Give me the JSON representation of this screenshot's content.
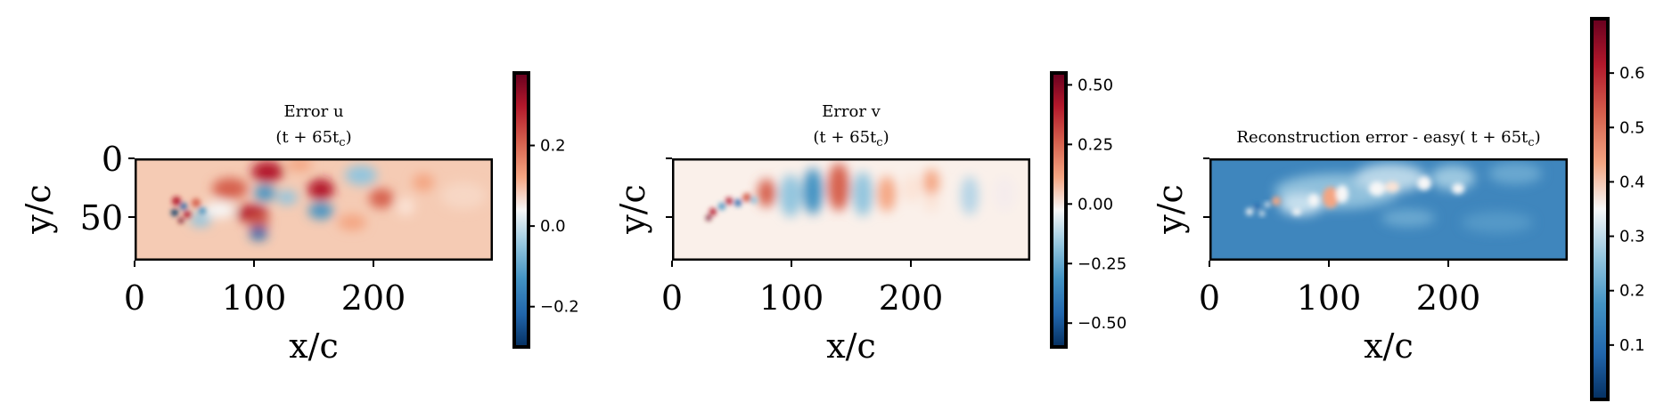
{
  "colors": {
    "negative": "#0a3d7a",
    "zero": "#f7f5f2",
    "positive": "#7a0020",
    "frame": "#000000"
  },
  "colormap": "RdBu_r",
  "chart_data": [
    {
      "type": "heatmap",
      "title_line1": "Error u",
      "title_line2": "(t + 65t",
      "title_sub": "c",
      "title_close": ")",
      "xlabel": "x/c",
      "ylabel": "y/c",
      "xlim": [
        0,
        300
      ],
      "ylim": [
        87,
        0
      ],
      "xticks": [
        {
          "value": 0,
          "label": "0"
        },
        {
          "value": 100,
          "label": "100"
        },
        {
          "value": 200,
          "label": "200"
        }
      ],
      "yticks": [
        {
          "value": 0,
          "label": "0"
        },
        {
          "value": 50,
          "label": "50"
        }
      ],
      "colorbar": {
        "vmin": -0.3,
        "vmax": 0.38,
        "ticks": [
          {
            "value": 0.2,
            "label": "0.2"
          },
          {
            "value": 0.0,
            "label": "0.0"
          },
          {
            "value": -0.2,
            "label": "−0.2"
          }
        ]
      }
    },
    {
      "type": "heatmap",
      "title_line1": "Error v",
      "title_line2": "(t + 65t",
      "title_sub": "c",
      "title_close": ")",
      "xlabel": "x/c",
      "ylabel": "y/c",
      "xlim": [
        0,
        300
      ],
      "ylim": [
        87,
        0
      ],
      "xticks": [
        {
          "value": 0,
          "label": "0"
        },
        {
          "value": 100,
          "label": "100"
        },
        {
          "value": 200,
          "label": "200"
        }
      ],
      "yticks": [
        {
          "value": 0,
          "label": ""
        },
        {
          "value": 50,
          "label": ""
        }
      ],
      "colorbar": {
        "vmin": -0.6,
        "vmax": 0.55,
        "ticks": [
          {
            "value": 0.5,
            "label": "0.50"
          },
          {
            "value": 0.25,
            "label": "0.25"
          },
          {
            "value": 0.0,
            "label": "0.00"
          },
          {
            "value": -0.25,
            "label": "−0.25"
          },
          {
            "value": -0.5,
            "label": "−0.50"
          }
        ]
      }
    },
    {
      "type": "heatmap",
      "title_line1": "",
      "title_line2": "Reconstruction error - easy( t + 65t",
      "title_sub": "c",
      "title_close": ")",
      "xlabel": "x/c",
      "ylabel": "y/c",
      "xlim": [
        0,
        300
      ],
      "ylim": [
        87,
        0
      ],
      "xticks": [
        {
          "value": 0,
          "label": "0"
        },
        {
          "value": 100,
          "label": "100"
        },
        {
          "value": 200,
          "label": "200"
        }
      ],
      "yticks": [
        {
          "value": 0,
          "label": ""
        },
        {
          "value": 50,
          "label": ""
        }
      ],
      "colorbar": {
        "vmin": 0.0,
        "vmax": 0.7,
        "ticks": [
          {
            "value": 0.6,
            "label": "0.6"
          },
          {
            "value": 0.5,
            "label": "0.5"
          },
          {
            "value": 0.4,
            "label": "0.4"
          },
          {
            "value": 0.3,
            "label": "0.3"
          },
          {
            "value": 0.2,
            "label": "0.2"
          },
          {
            "value": 0.1,
            "label": "0.1"
          }
        ]
      }
    }
  ]
}
